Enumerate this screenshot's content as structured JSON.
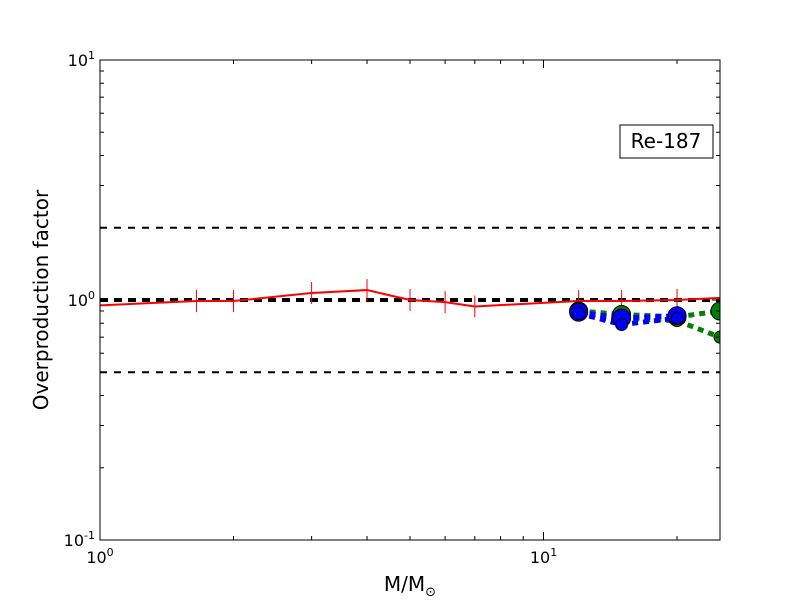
{
  "chart_data": {
    "type": "line",
    "xscale": "log",
    "yscale": "log",
    "xlim": [
      1,
      25
    ],
    "ylim": [
      0.1,
      10
    ],
    "xlabel": "M/M",
    "xlabel_sub": "⊙",
    "ylabel": "Overproduction factor",
    "x_ticks": [
      {
        "value": 1,
        "base": "10",
        "exp": "0"
      },
      {
        "value": 10,
        "base": "10",
        "exp": "1"
      }
    ],
    "y_ticks": [
      {
        "value": 0.1,
        "base": "10",
        "exp": "-1"
      },
      {
        "value": 1,
        "base": "10",
        "exp": "0"
      },
      {
        "value": 10,
        "base": "10",
        "exp": "1"
      }
    ],
    "grid": false,
    "annotation": "Re-187",
    "reference_lines": [
      {
        "y": 2.0,
        "color": "#000000",
        "style": "dashed",
        "width": 2
      },
      {
        "y": 1.0,
        "color": "#000000",
        "style": "dashed",
        "width": 4
      },
      {
        "y": 0.5,
        "color": "#000000",
        "style": "dashed",
        "width": 2
      }
    ],
    "series": [
      {
        "color": "#ff0000",
        "style": "solid",
        "marker": "errorbar",
        "x": [
          1.0,
          1.65,
          2.0,
          3.0,
          4.0,
          5.0,
          6.0,
          7.0,
          12.0,
          15.0,
          20.0,
          25.0
        ],
        "y": [
          0.95,
          0.99,
          0.99,
          1.07,
          1.1,
          1.0,
          0.98,
          0.94,
          0.99,
          0.99,
          1.0,
          1.02
        ],
        "err_x": [
          1.65,
          2.0,
          3.0,
          4.0,
          5.0,
          6.0,
          7.0,
          12.0,
          15.0,
          20.0
        ]
      },
      {
        "color": "#008000",
        "style": "dotted",
        "marker": "circle",
        "x": [
          12.0,
          15.0,
          20.0,
          25.0
        ],
        "y": [
          0.9,
          0.87,
          0.85,
          0.9
        ],
        "x2": [
          12.0,
          15.0,
          20.0,
          25.0
        ],
        "y2": [
          0.88,
          0.84,
          0.82,
          0.7
        ]
      },
      {
        "color": "#0000ff",
        "style": "dotted",
        "marker": "circle",
        "x": [
          12.0,
          15.0,
          20.0
        ],
        "y": [
          0.89,
          0.84,
          0.86
        ],
        "x2": [
          12.0,
          15.0,
          20.0
        ],
        "y2": [
          0.88,
          0.79,
          0.84
        ]
      }
    ]
  }
}
